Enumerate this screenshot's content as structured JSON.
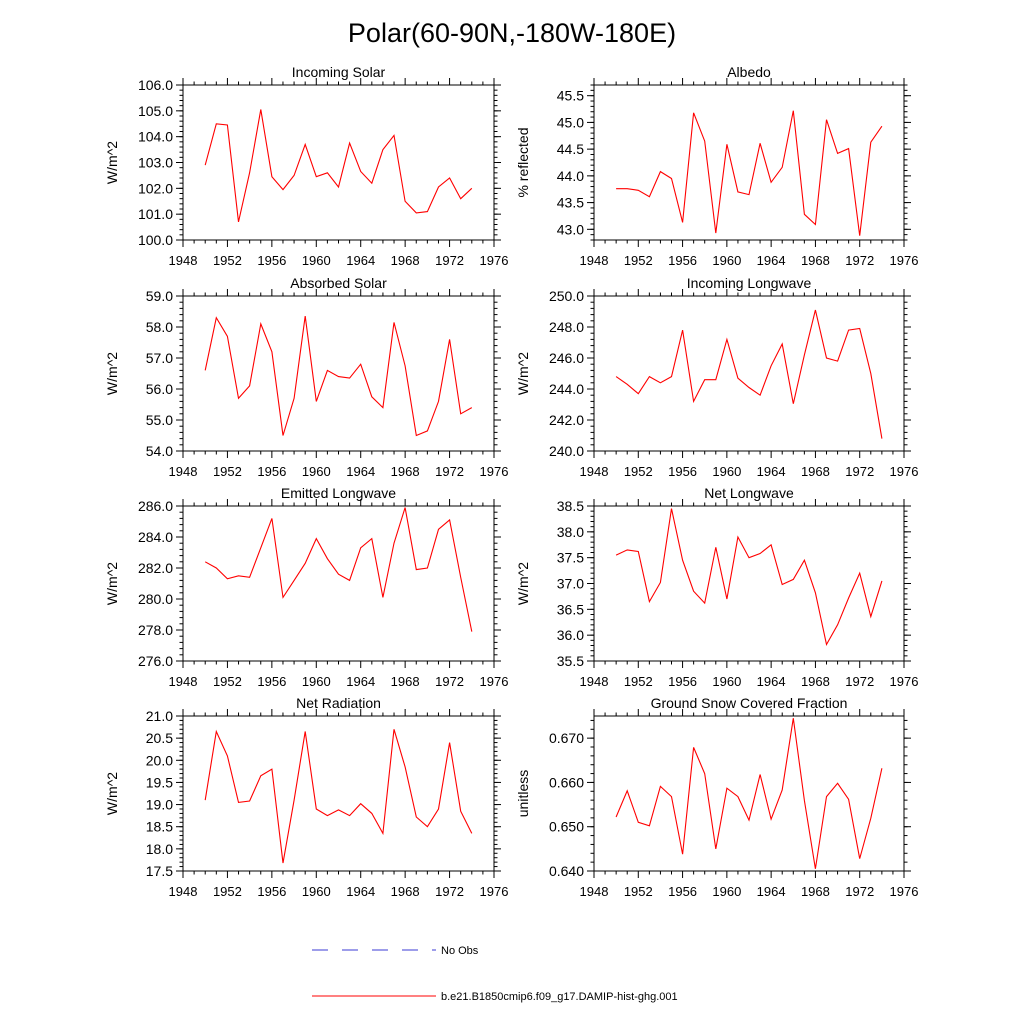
{
  "figure": {
    "title": "Polar(60-90N,-180W-180E)",
    "line_color": "#ff0000",
    "obs_color": "#3b3bd6"
  },
  "legend": {
    "obs_label": "No Obs",
    "model_label": "b.e21.B1850cmip6.f09_g17.DAMIP-hist-ghg.001"
  },
  "chart_data": [
    {
      "type": "line",
      "title": "Incoming Solar",
      "ylabel": "W/m^2",
      "xlim": [
        1948,
        1976
      ],
      "x_ticks": [
        1948,
        1952,
        1956,
        1960,
        1964,
        1968,
        1972,
        1976
      ],
      "ylim": [
        100.0,
        106.0
      ],
      "y_ticks": [
        "100.0",
        "101.0",
        "102.0",
        "103.0",
        "104.0",
        "105.0",
        "106.0"
      ],
      "x": [
        1950,
        1951,
        1952,
        1953,
        1954,
        1955,
        1956,
        1957,
        1958,
        1959,
        1960,
        1961,
        1962,
        1963,
        1964,
        1965,
        1966,
        1967,
        1968,
        1969,
        1970,
        1971,
        1972,
        1973,
        1974
      ],
      "values": [
        102.9,
        104.5,
        104.45,
        100.7,
        102.6,
        105.05,
        102.45,
        101.95,
        102.5,
        103.7,
        102.45,
        102.6,
        102.05,
        103.75,
        102.65,
        102.2,
        103.5,
        104.05,
        101.5,
        101.05,
        101.1,
        102.05,
        102.4,
        101.6,
        102.0
      ]
    },
    {
      "type": "line",
      "title": "Albedo",
      "ylabel": "% reflected",
      "xlim": [
        1948,
        1976
      ],
      "x_ticks": [
        1948,
        1952,
        1956,
        1960,
        1964,
        1968,
        1972,
        1976
      ],
      "ylim": [
        42.8,
        45.7
      ],
      "y_ticks": [
        "43.0",
        "43.5",
        "44.0",
        "44.5",
        "45.0",
        "45.5"
      ],
      "x": [
        1950,
        1951,
        1952,
        1953,
        1954,
        1955,
        1956,
        1957,
        1958,
        1959,
        1960,
        1961,
        1962,
        1963,
        1964,
        1965,
        1966,
        1967,
        1968,
        1969,
        1970,
        1971,
        1972,
        1973,
        1974
      ],
      "values": [
        43.76,
        43.76,
        43.73,
        43.61,
        44.08,
        43.95,
        43.13,
        45.18,
        44.65,
        42.93,
        44.59,
        43.7,
        43.65,
        44.61,
        43.88,
        44.16,
        45.22,
        43.28,
        43.09,
        45.05,
        44.42,
        44.51,
        42.88,
        44.63,
        44.93
      ]
    },
    {
      "type": "line",
      "title": "Absorbed Solar",
      "ylabel": "W/m^2",
      "xlim": [
        1948,
        1976
      ],
      "x_ticks": [
        1948,
        1952,
        1956,
        1960,
        1964,
        1968,
        1972,
        1976
      ],
      "ylim": [
        54.0,
        59.0
      ],
      "y_ticks": [
        "54.0",
        "55.0",
        "56.0",
        "57.0",
        "58.0",
        "59.0"
      ],
      "x": [
        1950,
        1951,
        1952,
        1953,
        1954,
        1955,
        1956,
        1957,
        1958,
        1959,
        1960,
        1961,
        1962,
        1963,
        1964,
        1965,
        1966,
        1967,
        1968,
        1969,
        1970,
        1971,
        1972,
        1973,
        1974
      ],
      "values": [
        56.6,
        58.3,
        57.7,
        55.7,
        56.1,
        58.1,
        57.2,
        54.5,
        55.7,
        58.35,
        55.6,
        56.6,
        56.4,
        56.35,
        56.8,
        55.75,
        55.4,
        58.15,
        56.75,
        54.5,
        54.65,
        55.6,
        57.6,
        55.2,
        55.4
      ]
    },
    {
      "type": "line",
      "title": "Incoming Longwave",
      "ylabel": "W/m^2",
      "xlim": [
        1948,
        1976
      ],
      "x_ticks": [
        1948,
        1952,
        1956,
        1960,
        1964,
        1968,
        1972,
        1976
      ],
      "ylim": [
        240.0,
        250.0
      ],
      "y_ticks": [
        "240.0",
        "242.0",
        "244.0",
        "246.0",
        "248.0",
        "250.0"
      ],
      "x": [
        1950,
        1951,
        1952,
        1953,
        1954,
        1955,
        1956,
        1957,
        1958,
        1959,
        1960,
        1961,
        1962,
        1963,
        1964,
        1965,
        1966,
        1967,
        1968,
        1969,
        1970,
        1971,
        1972,
        1973,
        1974
      ],
      "values": [
        244.8,
        244.3,
        243.7,
        244.8,
        244.4,
        244.8,
        247.8,
        243.2,
        244.6,
        244.6,
        247.2,
        244.7,
        244.1,
        243.6,
        245.5,
        246.9,
        243.05,
        246.2,
        249.1,
        246.0,
        245.8,
        247.8,
        247.9,
        245.0,
        240.8
      ]
    },
    {
      "type": "line",
      "title": "Emitted Longwave",
      "ylabel": "W/m^2",
      "xlim": [
        1948,
        1976
      ],
      "x_ticks": [
        1948,
        1952,
        1956,
        1960,
        1964,
        1968,
        1972,
        1976
      ],
      "ylim": [
        276.0,
        286.0
      ],
      "y_ticks": [
        "276.0",
        "278.0",
        "280.0",
        "282.0",
        "284.0",
        "286.0"
      ],
      "x": [
        1950,
        1951,
        1952,
        1953,
        1954,
        1955,
        1956,
        1957,
        1958,
        1959,
        1960,
        1961,
        1962,
        1963,
        1964,
        1965,
        1966,
        1967,
        1968,
        1969,
        1970,
        1971,
        1972,
        1973,
        1974
      ],
      "values": [
        282.4,
        282.0,
        281.3,
        281.5,
        281.4,
        283.3,
        285.2,
        280.1,
        281.2,
        282.3,
        283.9,
        282.6,
        281.6,
        281.2,
        283.3,
        283.9,
        280.1,
        283.6,
        285.9,
        281.9,
        282.0,
        284.5,
        285.1,
        281.4,
        277.9
      ]
    },
    {
      "type": "line",
      "title": "Net Longwave",
      "ylabel": "W/m^2",
      "xlim": [
        1948,
        1976
      ],
      "x_ticks": [
        1948,
        1952,
        1956,
        1960,
        1964,
        1968,
        1972,
        1976
      ],
      "ylim": [
        35.5,
        38.5
      ],
      "y_ticks": [
        "35.5",
        "36.0",
        "36.5",
        "37.0",
        "37.5",
        "38.0",
        "38.5"
      ],
      "x": [
        1950,
        1951,
        1952,
        1953,
        1954,
        1955,
        1956,
        1957,
        1958,
        1959,
        1960,
        1961,
        1962,
        1963,
        1964,
        1965,
        1966,
        1967,
        1968,
        1969,
        1970,
        1971,
        1972,
        1973,
        1974
      ],
      "values": [
        37.55,
        37.65,
        37.62,
        36.65,
        37.02,
        38.45,
        37.45,
        36.85,
        36.62,
        37.7,
        36.7,
        37.9,
        37.5,
        37.58,
        37.75,
        36.98,
        37.08,
        37.45,
        36.82,
        35.82,
        36.2,
        36.72,
        37.2,
        36.36,
        37.05
      ]
    },
    {
      "type": "line",
      "title": "Net Radiation",
      "ylabel": "W/m^2",
      "xlim": [
        1948,
        1976
      ],
      "x_ticks": [
        1948,
        1952,
        1956,
        1960,
        1964,
        1968,
        1972,
        1976
      ],
      "ylim": [
        17.5,
        21.0
      ],
      "y_ticks": [
        "17.5",
        "18.0",
        "18.5",
        "19.0",
        "19.5",
        "20.0",
        "20.5",
        "21.0"
      ],
      "x": [
        1950,
        1951,
        1952,
        1953,
        1954,
        1955,
        1956,
        1957,
        1958,
        1959,
        1960,
        1961,
        1962,
        1963,
        1964,
        1965,
        1966,
        1967,
        1968,
        1969,
        1970,
        1971,
        1972,
        1973,
        1974
      ],
      "values": [
        19.1,
        20.65,
        20.1,
        19.05,
        19.08,
        19.65,
        19.8,
        17.68,
        19.1,
        20.65,
        18.9,
        18.75,
        18.88,
        18.75,
        19.02,
        18.8,
        18.35,
        20.7,
        19.85,
        18.72,
        18.5,
        18.9,
        20.4,
        18.85,
        18.35
      ]
    },
    {
      "type": "line",
      "title": "Ground Snow Covered Fraction",
      "ylabel": "unitless",
      "xlim": [
        1948,
        1976
      ],
      "x_ticks": [
        1948,
        1952,
        1956,
        1960,
        1964,
        1968,
        1972,
        1976
      ],
      "ylim": [
        0.64,
        0.675
      ],
      "y_ticks": [
        "0.640",
        "0.650",
        "0.660",
        "0.670"
      ],
      "x": [
        1950,
        1951,
        1952,
        1953,
        1954,
        1955,
        1956,
        1957,
        1958,
        1959,
        1960,
        1961,
        1962,
        1963,
        1964,
        1965,
        1966,
        1967,
        1968,
        1969,
        1970,
        1971,
        1972,
        1973,
        1974
      ],
      "values": [
        0.6522,
        0.6581,
        0.651,
        0.6502,
        0.6591,
        0.6568,
        0.6438,
        0.6679,
        0.662,
        0.645,
        0.6587,
        0.6568,
        0.6515,
        0.6618,
        0.6517,
        0.6583,
        0.6745,
        0.6559,
        0.6405,
        0.6568,
        0.6598,
        0.6562,
        0.6428,
        0.6519,
        0.6632
      ]
    }
  ]
}
